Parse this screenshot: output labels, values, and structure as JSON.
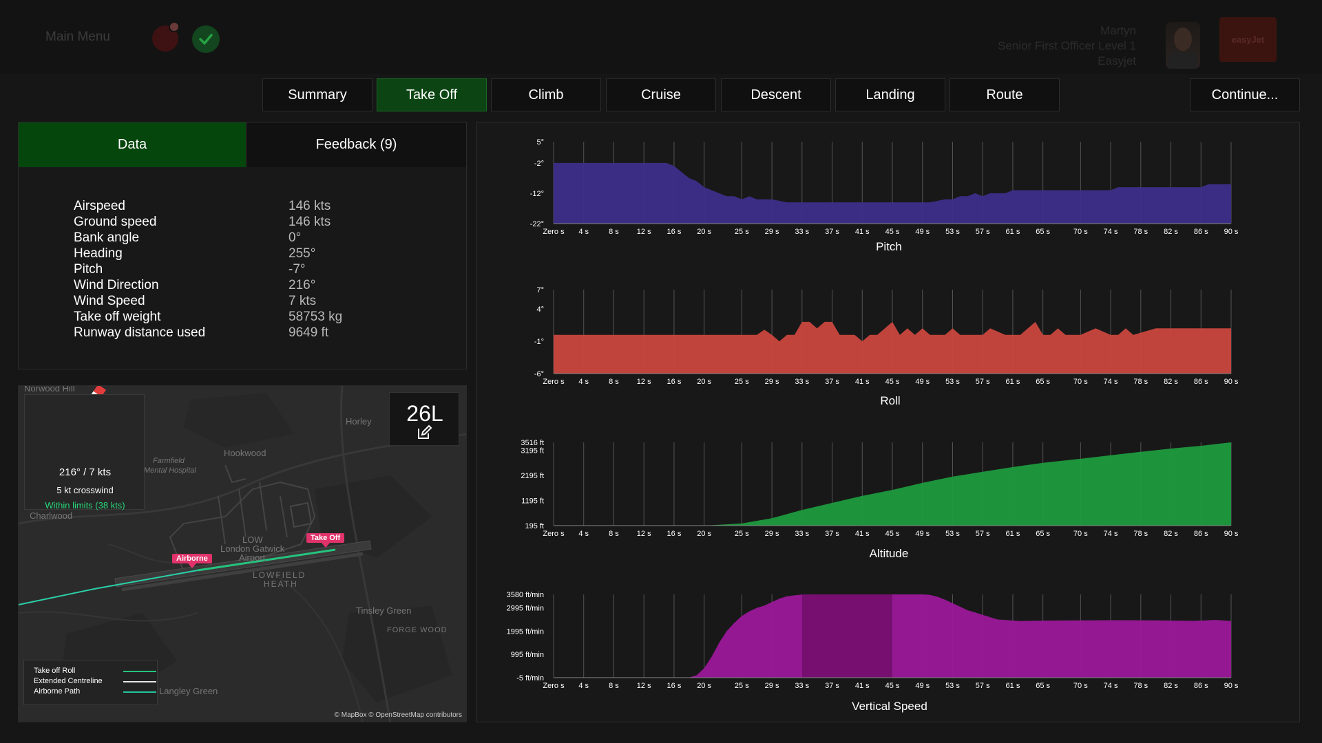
{
  "header": {
    "main_menu": "Main Menu",
    "user_name": "Martyn",
    "user_role": "Senior First Officer Level 1",
    "user_company": "Easyjet",
    "airline_logo_text": "easyJet"
  },
  "tabs": [
    {
      "label": "Summary",
      "active": false
    },
    {
      "label": "Take Off",
      "active": true
    },
    {
      "label": "Climb",
      "active": false
    },
    {
      "label": "Cruise",
      "active": false
    },
    {
      "label": "Descent",
      "active": false
    },
    {
      "label": "Landing",
      "active": false
    },
    {
      "label": "Route",
      "active": false
    }
  ],
  "continue_label": "Continue...",
  "panel": {
    "data_tab": "Data",
    "feedback_tab": "Feedback (9)"
  },
  "stats": [
    {
      "label": "Airspeed",
      "value": "146 kts"
    },
    {
      "label": "Ground speed",
      "value": "146 kts"
    },
    {
      "label": "Bank angle",
      "value": "0°"
    },
    {
      "label": "Heading",
      "value": "255°"
    },
    {
      "label": "Pitch",
      "value": "-7°"
    },
    {
      "label": "Wind Direction",
      "value": "216°"
    },
    {
      "label": "Wind Speed",
      "value": "7 kts"
    },
    {
      "label": "Take off weight",
      "value": "58753 kg"
    },
    {
      "label": "Runway distance used",
      "value": "9649 ft"
    }
  ],
  "map": {
    "wind": "216° / 7 kts",
    "crosswind": "5 kt crosswind",
    "within_limits": "Within limits (38 kts)",
    "runway": "26L",
    "labels": {
      "norwood_hill": "Norwood Hill",
      "horley": "Horley",
      "hookwood": "Hookwood",
      "farmfield": "Farmfield",
      "mental_hospital": "Mental Hospital",
      "charlwood": "Charlwood",
      "low": "LOW",
      "gatwick1": "London Gatwick",
      "gatwick2": "Airport",
      "lowfield": "LOWFIELD",
      "heath": "HEATH",
      "tinsley": "Tinsley Green",
      "forge": "FORGE WOOD",
      "langley": "Langley Green"
    },
    "markers": {
      "airborne": "Airborne",
      "takeoff": "Take Off"
    },
    "legend": [
      {
        "label": "Take off Roll",
        "color": "#25c47e"
      },
      {
        "label": "Extended Centreline",
        "color": "#e8e8e8"
      },
      {
        "label": "Airborne Path",
        "color": "#25c4a0"
      }
    ],
    "attribution": "© MapBox © OpenStreetMap contributors",
    "route_color": "#2ad0a8"
  },
  "chart_data": [
    {
      "type": "area",
      "title": "Pitch",
      "color": "#3d2e8a",
      "x": [
        "Zero s",
        "4 s",
        "8 s",
        "12 s",
        "16 s",
        "20 s",
        "25 s",
        "29 s",
        "33 s",
        "37 s",
        "41 s",
        "45 s",
        "49 s",
        "53 s",
        "57 s",
        "61 s",
        "65 s",
        "70 s",
        "74 s",
        "78 s",
        "82 s",
        "86 s",
        "90 s"
      ],
      "y_ticks": [
        "5°",
        "-2°",
        "-12°",
        "-22°"
      ],
      "y_tick_values": [
        5,
        -2,
        -12,
        -22
      ],
      "ylim": [
        -22,
        5
      ],
      "series_x": [
        0,
        8,
        15,
        16,
        17,
        18,
        19,
        20,
        21,
        22,
        23,
        24,
        25,
        26,
        27,
        28,
        29,
        31,
        33,
        37,
        41,
        45,
        50,
        52,
        53,
        54,
        55,
        56,
        57,
        58,
        60,
        61,
        63,
        65,
        70,
        74,
        75,
        78,
        82,
        86,
        87,
        88,
        90
      ],
      "series_y": [
        -2,
        -2,
        -2,
        -3,
        -5,
        -7,
        -8,
        -10,
        -11,
        -12,
        -13,
        -13,
        -14,
        -13,
        -14,
        -14,
        -14,
        -15,
        -15,
        -15,
        -15,
        -15,
        -15,
        -14,
        -14,
        -13,
        -13,
        -12,
        -13,
        -12,
        -12,
        -11,
        -11,
        -11,
        -11,
        -11,
        -10,
        -10,
        -10,
        -10,
        -9,
        -9,
        -9
      ]
    },
    {
      "type": "area",
      "title": "Roll",
      "color": "#c9473e",
      "x": [
        "Zero s",
        "4 s",
        "8 s",
        "12 s",
        "16 s",
        "20 s",
        "25 s",
        "29 s",
        "33 s",
        "37 s",
        "41 s",
        "45 s",
        "49 s",
        "53 s",
        "57 s",
        "61 s",
        "65 s",
        "70 s",
        "74 s",
        "78 s",
        "82 s",
        "86 s",
        "90 s"
      ],
      "y_ticks": [
        "7°",
        "4°",
        "-1°",
        "-6°"
      ],
      "y_tick_values": [
        7,
        4,
        -1,
        -6
      ],
      "ylim": [
        -6,
        7
      ],
      "series_x": [
        0,
        27,
        28,
        29,
        30,
        31,
        32,
        33,
        34,
        35,
        36,
        37,
        38,
        40,
        41,
        42,
        43,
        45,
        46,
        47,
        48,
        49,
        50,
        52,
        53,
        54,
        55,
        57,
        58,
        60,
        61,
        62,
        63,
        64,
        65,
        66,
        67,
        68,
        70,
        72,
        74,
        75,
        76,
        77,
        80,
        90
      ],
      "series_y": [
        0,
        0,
        0.8,
        0,
        -1,
        0,
        0,
        2,
        2,
        1,
        2,
        2,
        0,
        0,
        -1,
        0,
        0,
        2,
        0,
        1,
        0,
        1,
        0,
        0,
        1,
        0,
        0,
        0,
        1,
        0,
        0,
        0,
        1,
        2,
        0,
        0,
        1,
        0,
        0,
        1,
        0,
        0,
        1,
        0,
        1,
        1
      ]
    },
    {
      "type": "area",
      "title": "Altitude",
      "color": "#1d9a3e",
      "x": [
        "Zero s",
        "4 s",
        "8 s",
        "12 s",
        "16 s",
        "20 s",
        "25 s",
        "29 s",
        "33 s",
        "37 s",
        "41 s",
        "45 s",
        "49 s",
        "53 s",
        "57 s",
        "61 s",
        "65 s",
        "70 s",
        "74 s",
        "78 s",
        "82 s",
        "86 s",
        "90 s"
      ],
      "y_ticks": [
        "3516 ft",
        "3195 ft",
        "2195 ft",
        "1195 ft",
        "195 ft"
      ],
      "y_tick_values": [
        3516,
        3195,
        2195,
        1195,
        195
      ],
      "ylim": [
        195,
        3516
      ],
      "series_x": [
        0,
        20,
        25,
        29,
        33,
        37,
        41,
        45,
        49,
        53,
        57,
        61,
        65,
        70,
        74,
        78,
        82,
        86,
        90
      ],
      "series_y": [
        195,
        195,
        280,
        490,
        820,
        1100,
        1380,
        1620,
        1900,
        2150,
        2340,
        2530,
        2700,
        2860,
        3000,
        3140,
        3270,
        3380,
        3516
      ]
    },
    {
      "type": "area",
      "title": "Vertical Speed",
      "color": "#9a1899",
      "shade_color": "#760f70",
      "shade_from": 33,
      "shade_to": 45,
      "x": [
        "Zero s",
        "4 s",
        "8 s",
        "12 s",
        "16 s",
        "20 s",
        "25 s",
        "29 s",
        "33 s",
        "37 s",
        "41 s",
        "45 s",
        "49 s",
        "53 s",
        "57 s",
        "61 s",
        "65 s",
        "70 s",
        "74 s",
        "78 s",
        "82 s",
        "86 s",
        "90 s"
      ],
      "y_ticks": [
        "3580 ft/min",
        "2995 ft/min",
        "1995 ft/min",
        "995 ft/min",
        "-5 ft/min"
      ],
      "y_tick_values": [
        3580,
        2995,
        1995,
        995,
        -5
      ],
      "ylim": [
        -5,
        3580
      ],
      "series_x": [
        0,
        18,
        19,
        20,
        21,
        22,
        23,
        24,
        25,
        26,
        27,
        28,
        29,
        30,
        31,
        32,
        33,
        35,
        37,
        39,
        41,
        43,
        45,
        47,
        49,
        50,
        51,
        52,
        53,
        54,
        55,
        56,
        57,
        58,
        59,
        60,
        62,
        65,
        70,
        75,
        80,
        85,
        88,
        90
      ],
      "series_y": [
        0,
        0,
        100,
        400,
        900,
        1500,
        2000,
        2350,
        2650,
        2850,
        3000,
        3100,
        3250,
        3400,
        3500,
        3540,
        3570,
        3580,
        3580,
        3580,
        3580,
        3580,
        3580,
        3580,
        3580,
        3560,
        3480,
        3350,
        3200,
        3050,
        2900,
        2800,
        2700,
        2600,
        2500,
        2480,
        2430,
        2450,
        2460,
        2470,
        2460,
        2440,
        2480,
        2430
      ]
    }
  ]
}
